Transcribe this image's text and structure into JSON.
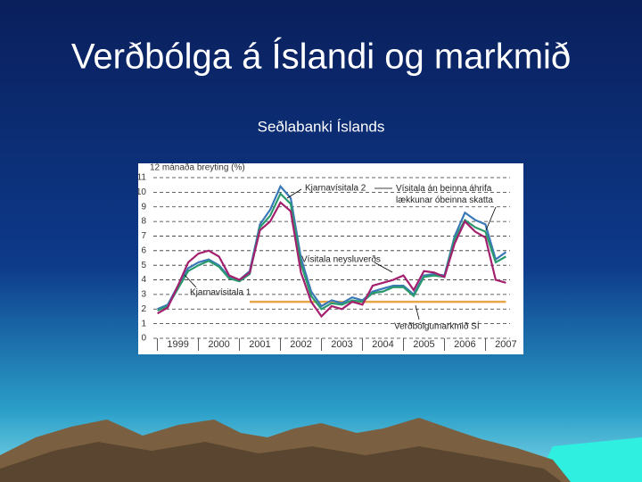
{
  "slide": {
    "title": "Verðbólga á Íslandi og markmið",
    "subtitle": "Seðlabanki Íslands"
  },
  "chart_data": {
    "type": "line",
    "ylabel": "12 mánaða breyting (%)",
    "x": [
      1999,
      1999.25,
      1999.5,
      1999.75,
      2000,
      2000.25,
      2000.5,
      2000.75,
      2001,
      2001.25,
      2001.5,
      2001.75,
      2002,
      2002.25,
      2002.5,
      2002.75,
      2003,
      2003.25,
      2003.5,
      2003.75,
      2004,
      2004.25,
      2004.5,
      2004.75,
      2005,
      2005.25,
      2005.5,
      2005.75,
      2006,
      2006.25,
      2006.5,
      2006.75,
      2007,
      2007.25,
      2007.5
    ],
    "series": [
      {
        "name": "Kjarnavísitala 2",
        "color": "#3a78b8",
        "values": [
          2.0,
          2.3,
          3.6,
          4.8,
          5.2,
          5.4,
          5.0,
          4.2,
          4.0,
          4.6,
          7.8,
          8.8,
          10.4,
          9.6,
          5.5,
          3.2,
          2.2,
          2.6,
          2.4,
          2.8,
          2.6,
          3.2,
          3.4,
          3.6,
          3.6,
          3.0,
          4.3,
          4.4,
          4.3,
          7.0,
          8.6,
          8.1,
          7.8,
          5.4,
          5.9
        ]
      },
      {
        "name": "Kjarnavísitala 1",
        "color": "#2a9a6e",
        "values": [
          1.9,
          2.2,
          3.4,
          4.6,
          5.0,
          5.3,
          4.9,
          4.1,
          3.9,
          4.4,
          7.6,
          8.4,
          9.9,
          9.2,
          5.1,
          2.9,
          2.0,
          2.4,
          2.3,
          2.6,
          2.5,
          3.1,
          3.2,
          3.5,
          3.5,
          2.9,
          4.2,
          4.3,
          4.2,
          6.8,
          8.1,
          7.6,
          7.3,
          5.2,
          5.6
        ]
      },
      {
        "name": "Vísitala neysluverðs",
        "color": "#a3206e",
        "values": [
          1.7,
          2.1,
          3.6,
          5.2,
          5.8,
          6.0,
          5.6,
          4.3,
          4.0,
          4.5,
          7.4,
          8.0,
          9.3,
          8.7,
          4.5,
          2.5,
          1.5,
          2.2,
          2.0,
          2.5,
          2.3,
          3.6,
          3.8,
          4.0,
          4.3,
          3.3,
          4.6,
          4.5,
          4.2,
          6.5,
          8.0,
          7.3,
          6.9,
          4.0,
          3.8
        ]
      }
    ],
    "target": {
      "name": "Verðbólgumarkmið SÍ",
      "value": 2.5,
      "xrange": [
        2001.25,
        2007.5
      ],
      "color": "#e8a64a"
    },
    "annotation": "Vísitala án beinna áhrifa lækkunar óbeinna skatta",
    "xlim": [
      1998.9,
      2007.6
    ],
    "xticks": [
      1999,
      2000,
      2001,
      2002,
      2003,
      2004,
      2005,
      2006,
      2007
    ],
    "ylim": [
      0,
      11
    ],
    "yticks": [
      0,
      1,
      2,
      3,
      4,
      5,
      6,
      7,
      8,
      9,
      10,
      11
    ],
    "grid": true
  }
}
